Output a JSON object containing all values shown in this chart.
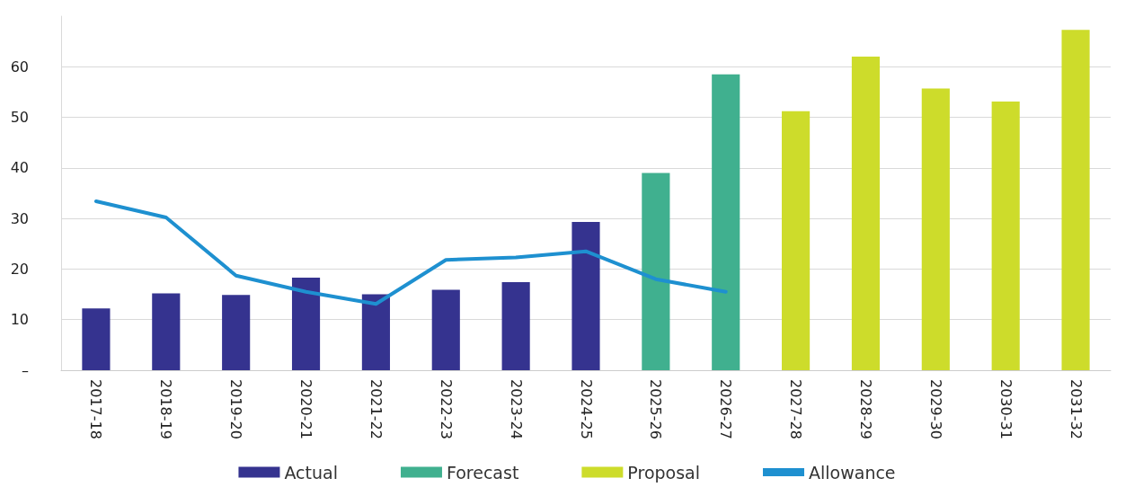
{
  "chart_data": {
    "type": "bar",
    "categories": [
      "2017-18",
      "2018-19",
      "2019-20",
      "2020-21",
      "2021-22",
      "2022-23",
      "2023-24",
      "2024-25",
      "2025-26",
      "2026-27",
      "2027-28",
      "2028-29",
      "2029-30",
      "2030-31",
      "2031-32"
    ],
    "series": [
      {
        "name": "Actual",
        "color": "#35338f",
        "values": [
          12.2,
          15.2,
          14.9,
          18.3,
          15.0,
          15.9,
          17.4,
          29.3,
          null,
          null,
          null,
          null,
          null,
          null,
          null
        ]
      },
      {
        "name": "Forecast",
        "color": "#40b08f",
        "values": [
          null,
          null,
          null,
          null,
          null,
          null,
          null,
          null,
          39.0,
          58.5,
          null,
          null,
          null,
          null,
          null
        ]
      },
      {
        "name": "Proposal",
        "color": "#cddc2b",
        "values": [
          null,
          null,
          null,
          null,
          null,
          null,
          null,
          null,
          null,
          null,
          51.2,
          62.0,
          55.7,
          53.1,
          67.3
        ]
      },
      {
        "name": "Allowance",
        "type": "line",
        "color": "#1e90d0",
        "values": [
          33.4,
          30.2,
          18.7,
          15.5,
          13.1,
          21.8,
          22.3,
          23.5,
          18.0,
          15.5,
          null,
          null,
          null,
          null,
          null
        ]
      }
    ],
    "ylim": [
      0,
      70
    ],
    "yticks": [
      {
        "value": 0,
        "label": "–"
      },
      10,
      20,
      30,
      40,
      50,
      60
    ],
    "grid": "y",
    "legend": "bottom",
    "marker": "none",
    "line_style": "solid"
  }
}
